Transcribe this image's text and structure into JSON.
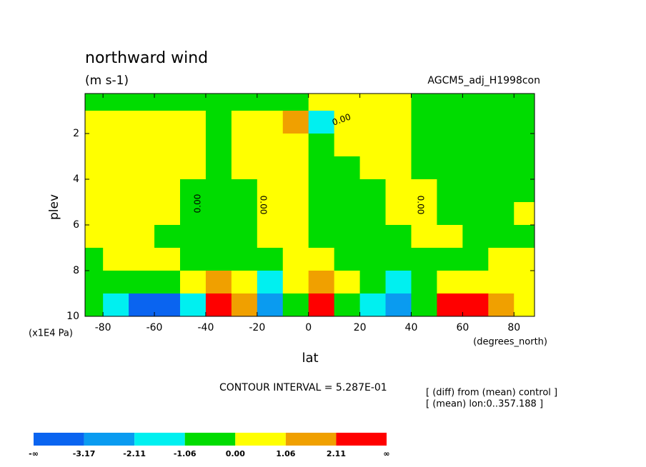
{
  "chart_data": {
    "type": "contour",
    "title": "northward wind",
    "subtitle": "(m s-1)",
    "dataset": "AGCM5_adj_H1998con",
    "xlabel": "lat",
    "ylabel": "plev",
    "xunits": "(degrees_north)",
    "yunits": "(x1E4 Pa)",
    "contour_interval": "CONTOUR INTERVAL = 5.287E-01",
    "notes": [
      "[ (diff) from (mean) control ]",
      "[ (mean) lon:0..357.188 ]"
    ],
    "contour_labels": [
      "0.00",
      "0.00",
      "0.00",
      "0.00"
    ],
    "xlim": [
      -87,
      88
    ],
    "ylim": [
      0.25,
      10
    ],
    "y_inverted": true,
    "xticks": [
      -80,
      -60,
      -40,
      -20,
      0,
      20,
      40,
      60,
      80
    ],
    "yticks": [
      2,
      4,
      6,
      8,
      10
    ],
    "x": [
      -85,
      -75,
      -65,
      -55,
      -45,
      -35,
      -25,
      -15,
      -5,
      5,
      15,
      25,
      35,
      45,
      55,
      65,
      75,
      85
    ],
    "y": [
      0.5,
      1.5,
      2.5,
      3.5,
      4.5,
      5.5,
      6.5,
      7.5,
      8.5,
      9.5
    ],
    "z": [
      [
        -0.5,
        -0.5,
        -0.5,
        -0.5,
        -0.5,
        -0.5,
        -0.5,
        -0.5,
        -0.5,
        0.5,
        0.5,
        0.5,
        0.5,
        -0.5,
        -0.5,
        -0.5,
        -0.5,
        -0.5
      ],
      [
        0.5,
        0.5,
        0.5,
        0.5,
        0.5,
        -0.5,
        0.5,
        0.5,
        1.5,
        -1.5,
        0.5,
        0.5,
        0.5,
        -0.5,
        -0.5,
        -0.5,
        -0.5,
        -0.5
      ],
      [
        0.5,
        0.5,
        0.5,
        0.5,
        0.5,
        -0.5,
        0.5,
        0.5,
        0.5,
        -0.5,
        0.5,
        0.5,
        0.5,
        -0.5,
        -0.5,
        -0.5,
        -0.5,
        -0.5
      ],
      [
        0.5,
        0.5,
        0.5,
        0.5,
        0.5,
        -0.5,
        0.5,
        0.5,
        0.5,
        -0.5,
        -0.5,
        0.5,
        0.5,
        -0.5,
        -0.5,
        -0.5,
        -0.5,
        -0.5
      ],
      [
        0.5,
        0.5,
        0.5,
        0.5,
        -0.5,
        -0.5,
        -0.5,
        0.5,
        0.5,
        -0.5,
        -0.5,
        -0.5,
        0.5,
        0.5,
        -0.5,
        -0.5,
        -0.5,
        -0.5
      ],
      [
        0.5,
        0.5,
        0.5,
        0.5,
        -0.5,
        -0.5,
        -0.5,
        0.5,
        0.5,
        -0.5,
        -0.5,
        -0.5,
        0.5,
        0.5,
        -0.5,
        -0.5,
        -0.5,
        0.5
      ],
      [
        0.5,
        0.5,
        0.5,
        -0.5,
        -0.5,
        -0.5,
        -0.5,
        0.5,
        0.5,
        -0.5,
        -0.5,
        -0.5,
        -0.5,
        0.5,
        0.5,
        -0.5,
        -0.5,
        -0.5
      ],
      [
        -0.5,
        0.5,
        0.5,
        0.5,
        -0.5,
        -0.5,
        -0.5,
        -0.5,
        0.5,
        0.5,
        -0.5,
        -0.5,
        -0.5,
        -0.5,
        -0.5,
        -0.5,
        0.5,
        0.5
      ],
      [
        -0.5,
        -0.5,
        -0.5,
        -0.5,
        0.5,
        1.5,
        0.5,
        -1.5,
        0.5,
        1.5,
        0.5,
        -0.5,
        -1.5,
        -0.5,
        0.5,
        0.5,
        0.5,
        0.5
      ],
      [
        -0.5,
        -1.5,
        -3.5,
        -3.5,
        -1.5,
        2.5,
        1.5,
        -2.5,
        -0.5,
        2.5,
        -0.5,
        -1.5,
        -2.5,
        -0.5,
        2.5,
        2.5,
        1.5,
        0.5
      ]
    ],
    "colorbar": {
      "levels": [
        -3.17,
        -2.11,
        -1.06,
        0,
        1.06,
        2.11
      ],
      "colors": [
        "#0a64f0",
        "#0a9bf0",
        "#00f0f0",
        "#00dc00",
        "#ffff00",
        "#f0a000",
        "#ff0000"
      ],
      "ticks": [
        "-∞",
        -3.17,
        -2.11,
        -1.06,
        {
          "value": 0,
          "label": "0.00"
        },
        1.06,
        2.11,
        "∞"
      ]
    }
  }
}
